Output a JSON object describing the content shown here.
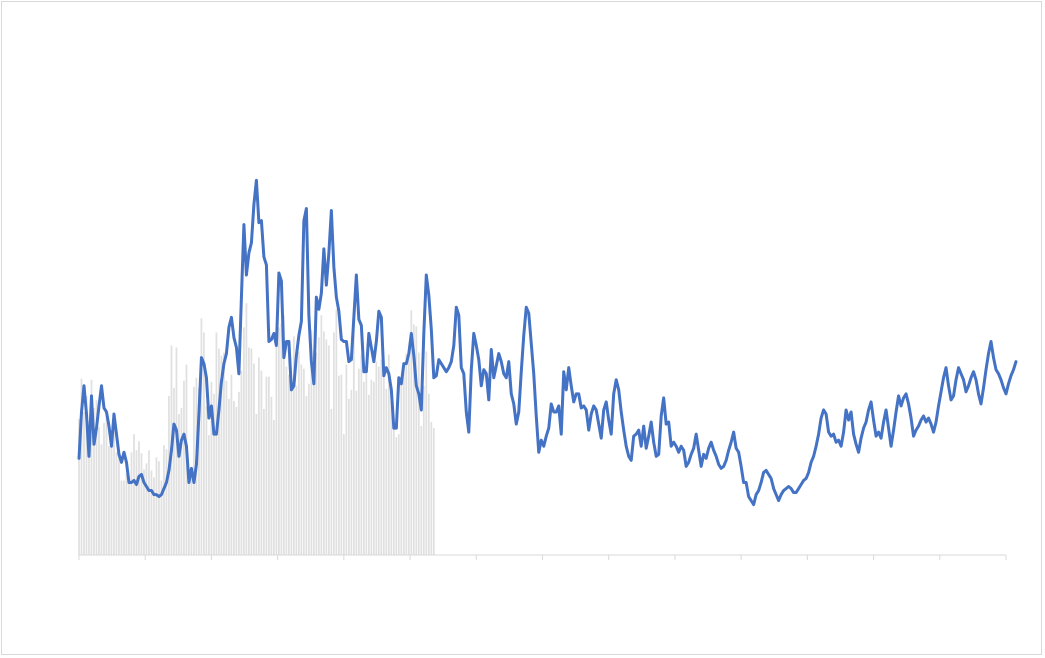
{
  "chart_data": {
    "type": "bar+line",
    "title": "",
    "xlabel": "",
    "ylabel": "",
    "ylim": [
      0,
      420
    ],
    "x_count": 372,
    "x_tick_count": 15,
    "colors": {
      "bars": "#e0e0e0",
      "line": "#4472c4",
      "axis": "#d9d9d9"
    },
    "series": [
      {
        "name": "bars",
        "values": [
          135,
          175,
          142,
          158,
          133,
          174,
          146,
          154,
          127,
          110,
          131,
          144,
          108,
          109,
          138,
          102,
          101,
          74,
          74,
          81,
          72,
          102,
          120,
          104,
          113,
          101,
          85,
          91,
          104,
          84,
          77,
          97,
          93,
          74,
          109,
          105,
          158,
          208,
          166,
          206,
          140,
          146,
          173,
          189,
          79,
          82,
          167,
          176,
          166,
          235,
          221,
          148,
          119,
          172,
          160,
          221,
          205,
          198,
          201,
          173,
          155,
          179,
          153,
          147,
          162,
          183,
          226,
          250,
          206,
          205,
          190,
          140,
          196,
          183,
          145,
          177,
          177,
          157,
          134,
          216,
          226,
          230,
          238,
          187,
          179,
          166,
          217,
          168,
          202,
          189,
          185,
          158,
          170,
          223,
          203,
          201,
          216,
          238,
          222,
          214,
          208,
          145,
          221,
          244,
          178,
          179,
          120,
          189,
          155,
          164,
          237,
          163,
          185,
          199,
          172,
          180,
          159,
          174,
          172,
          192,
          187,
          194,
          183,
          165,
          199,
          169,
          128,
          117,
          120,
          176,
          187,
          200,
          200,
          243,
          229,
          227,
          201,
          128,
          168,
          202,
          160,
          132,
          126,
          0,
          0,
          0,
          0,
          0,
          0,
          0,
          0,
          0,
          0,
          0,
          0,
          0,
          0,
          0,
          0,
          0,
          0,
          0,
          0,
          0,
          0,
          0,
          0,
          0,
          0,
          0,
          0,
          0,
          0,
          0,
          0,
          0,
          0,
          0,
          0,
          0,
          0,
          0,
          0,
          0,
          0,
          0,
          0,
          0,
          0,
          0,
          0,
          0,
          0,
          0,
          0,
          0,
          0,
          0,
          0,
          0,
          0,
          0,
          0,
          0,
          0,
          0,
          0,
          0,
          0,
          0,
          0,
          0,
          0,
          0,
          0,
          0,
          0,
          0,
          0,
          0,
          0,
          0,
          0,
          0,
          0,
          0,
          0,
          0,
          0,
          0,
          0,
          0,
          0,
          0,
          0,
          0,
          0,
          0,
          0,
          0,
          0,
          0,
          0,
          0,
          0,
          0,
          0,
          0,
          0,
          0,
          0,
          0,
          0,
          0,
          0,
          0,
          0,
          0,
          0,
          0,
          0,
          0,
          0,
          0,
          0,
          0,
          0,
          0,
          0,
          0,
          0,
          0,
          0,
          0,
          0,
          0,
          0,
          0,
          0,
          0,
          0,
          0,
          0,
          0,
          0,
          0,
          0,
          0,
          0,
          0,
          0,
          0,
          0,
          0,
          0,
          0,
          0,
          0,
          0,
          0,
          0,
          0,
          0,
          0,
          0,
          0,
          0,
          0,
          0,
          0,
          0,
          0,
          0,
          0,
          0,
          0,
          0,
          0,
          0,
          0,
          0,
          0,
          0,
          0,
          0,
          0,
          0,
          0,
          0,
          0,
          0,
          0,
          0,
          0,
          0,
          0,
          0,
          0,
          0,
          0,
          0,
          0,
          0,
          0,
          0,
          0,
          0,
          0,
          0,
          0,
          0,
          0,
          0,
          0,
          0,
          0,
          0,
          0,
          0,
          0,
          0,
          0,
          0,
          0,
          0,
          0,
          0,
          0,
          0,
          0,
          0,
          0,
          0,
          0,
          0,
          0,
          0,
          0,
          0,
          0,
          0,
          0,
          0,
          0,
          0,
          0,
          0,
          0,
          0,
          0,
          0,
          0,
          0,
          0,
          0,
          0,
          0,
          0,
          0,
          0,
          0,
          0,
          0,
          0,
          0,
          0,
          0,
          0,
          0,
          0,
          0,
          0,
          0
        ]
      },
      {
        "name": "line",
        "values": [
          96,
          142,
          168,
          140,
          98,
          158,
          110,
          126,
          148,
          168,
          146,
          142,
          128,
          108,
          140,
          120,
          100,
          92,
          102,
          92,
          72,
          72,
          74,
          70,
          78,
          80,
          72,
          68,
          64,
          64,
          60,
          60,
          58,
          60,
          66,
          72,
          84,
          104,
          130,
          124,
          98,
          114,
          120,
          108,
          72,
          86,
          72,
          90,
          140,
          196,
          190,
          176,
          136,
          148,
          120,
          120,
          144,
          172,
          190,
          200,
          226,
          236,
          216,
          206,
          180,
          256,
          328,
          278,
          300,
          310,
          348,
          372,
          330,
          332,
          296,
          288,
          212,
          214,
          220,
          208,
          280,
          272,
          196,
          212,
          212,
          164,
          168,
          198,
          218,
          232,
          332,
          344,
          238,
          192,
          170,
          256,
          244,
          260,
          304,
          268,
          300,
          342,
          286,
          256,
          242,
          214,
          212,
          212,
          192,
          194,
          236,
          278,
          234,
          228,
          182,
          182,
          220,
          206,
          192,
          212,
          242,
          236,
          178,
          186,
          180,
          164,
          126,
          126,
          176,
          170,
          190,
          190,
          200,
          220,
          198,
          168,
          160,
          144,
          220,
          278,
          258,
          224,
          176,
          178,
          194,
          190,
          186,
          182,
          186,
          192,
          208,
          246,
          238,
          186,
          180,
          142,
          122,
          184,
          220,
          208,
          194,
          168,
          184,
          180,
          154,
          204,
          176,
          188,
          200,
          192,
          180,
          176,
          192,
          160,
          150,
          130,
          142,
          182,
          218,
          246,
          240,
          210,
          180,
          138,
          102,
          114,
          108,
          118,
          126,
          150,
          142,
          142,
          148,
          120,
          182,
          164,
          186,
          168,
          152,
          160,
          160,
          146,
          148,
          144,
          124,
          140,
          148,
          144,
          130,
          116,
          144,
          152,
          134,
          120,
          160,
          174,
          164,
          142,
          124,
          108,
          98,
          94,
          118,
          120,
          124,
          108,
          128,
          106,
          118,
          132,
          112,
          98,
          100,
          138,
          156,
          130,
          132,
          108,
          112,
          108,
          102,
          108,
          104,
          88,
          92,
          100,
          106,
          120,
          104,
          88,
          100,
          96,
          106,
          112,
          104,
          98,
          90,
          86,
          88,
          94,
          104,
          112,
          122,
          106,
          102,
          88,
          72,
          72,
          58,
          54,
          50,
          60,
          64,
          72,
          82,
          84,
          80,
          76,
          66,
          60,
          54,
          60,
          64,
          66,
          68,
          66,
          62,
          62,
          66,
          70,
          74,
          76,
          82,
          92,
          98,
          108,
          120,
          136,
          144,
          140,
          122,
          118,
          120,
          112,
          114,
          108,
          122,
          144,
          134,
          142,
          120,
          110,
          102,
          116,
          126,
          132,
          144,
          152,
          134,
          118,
          122,
          116,
          132,
          144,
          126,
          108,
          124,
          142,
          158,
          148,
          156,
          160,
          150,
          136,
          118,
          124,
          128,
          134,
          138,
          132,
          136,
          130,
          122,
          132,
          148,
          162,
          176,
          186,
          168,
          154,
          158,
          174,
          186,
          180,
          174,
          162,
          168,
          176,
          182,
          174,
          160,
          150,
          166,
          184,
          200,
          212,
          196,
          184,
          180,
          174,
          166,
          160,
          170,
          178,
          184,
          192
        ]
      }
    ]
  }
}
